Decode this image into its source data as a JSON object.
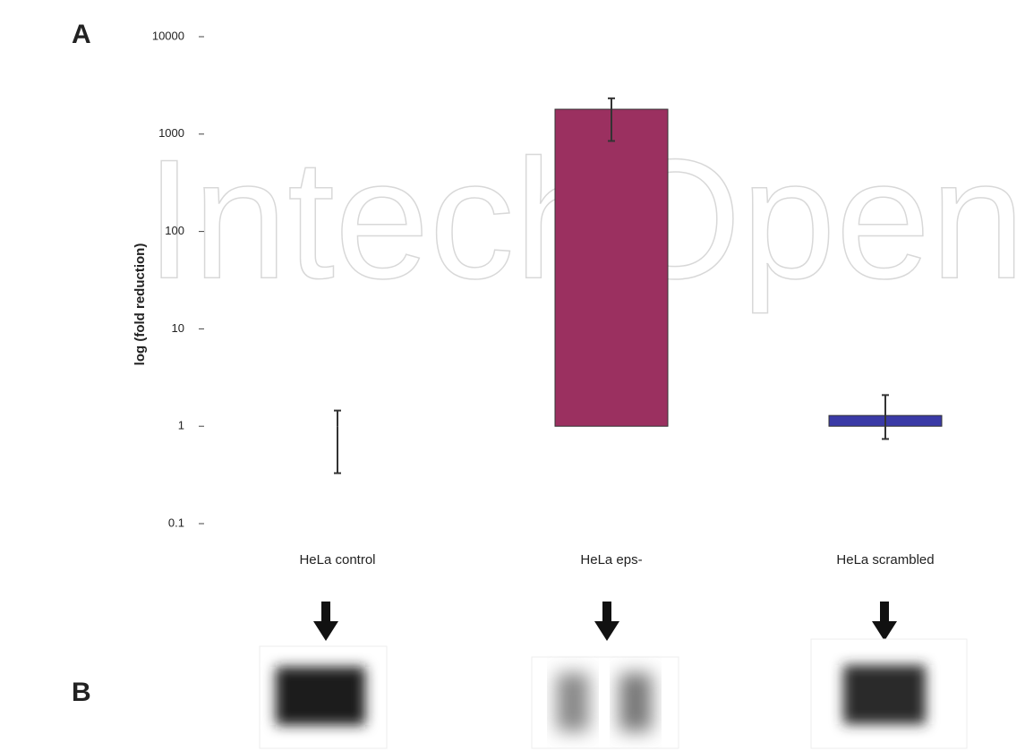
{
  "chart_data": {
    "type": "bar",
    "panel_a": "A",
    "panel_b": "B",
    "watermark": "IntechOpen",
    "y_label": "log (fold reduction)",
    "categories": [
      "HeLa control",
      "HeLa eps-",
      "HeLa scrambled"
    ],
    "values": [
      1,
      1800,
      1.29
    ],
    "error_high": [
      0.45,
      530,
      0.8
    ],
    "error_low": [
      0.67,
      950,
      0.55
    ],
    "colors": [
      "#9b3060",
      "#9b3060",
      "#3a3aa6"
    ],
    "log_scale": true,
    "ylim": [
      0.1,
      10000
    ],
    "yticks": [
      0.1,
      1,
      10,
      100,
      1000,
      10000
    ]
  }
}
